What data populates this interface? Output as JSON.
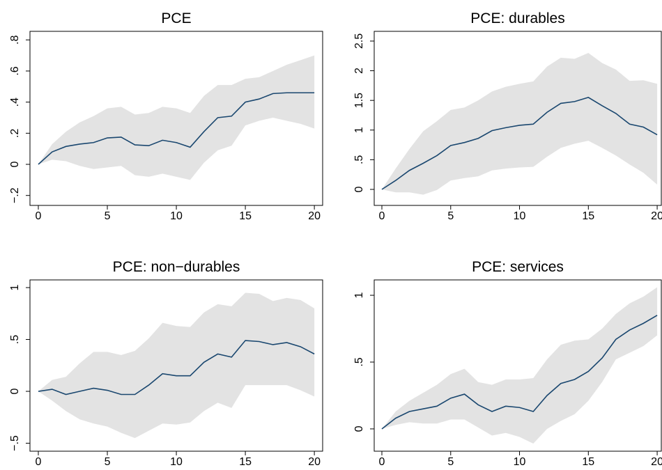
{
  "chart_data": [
    {
      "type": "line",
      "title": "PCE",
      "x": [
        0,
        1,
        2,
        3,
        4,
        5,
        6,
        7,
        8,
        9,
        10,
        11,
        12,
        13,
        14,
        15,
        16,
        17,
        18,
        19,
        20
      ],
      "values": [
        0,
        0.08,
        0.115,
        0.13,
        0.14,
        0.17,
        0.175,
        0.125,
        0.12,
        0.155,
        0.14,
        0.11,
        0.21,
        0.3,
        0.31,
        0.4,
        0.42,
        0.455,
        0.46,
        0.46,
        0.46
      ],
      "upper": [
        0,
        0.13,
        0.21,
        0.27,
        0.31,
        0.36,
        0.37,
        0.32,
        0.33,
        0.37,
        0.36,
        0.33,
        0.44,
        0.51,
        0.51,
        0.55,
        0.56,
        0.6,
        0.64,
        0.67,
        0.7
      ],
      "lower": [
        0,
        0.03,
        0.02,
        -0.01,
        -0.03,
        -0.02,
        -0.01,
        -0.07,
        -0.08,
        -0.06,
        -0.08,
        -0.1,
        0.01,
        0.09,
        0.12,
        0.25,
        0.28,
        0.3,
        0.28,
        0.26,
        0.23
      ],
      "color": "#1a476f",
      "band_color": "#e3e3e3",
      "xlim": [
        -0.606,
        20.6
      ],
      "xticks": [
        0,
        5,
        10,
        15,
        20
      ],
      "ylim": [
        -0.264,
        0.855
      ],
      "yticks": [
        {
          "value": -0.2,
          "label": "−.2"
        },
        0,
        {
          "value": 0.2,
          "label": ".2"
        },
        {
          "value": 0.4,
          "label": ".4"
        },
        {
          "value": 0.6,
          "label": ".6"
        },
        {
          "value": 0.8,
          "label": ".8"
        }
      ]
    },
    {
      "type": "line",
      "title": "PCE: durables",
      "x": [
        0,
        1,
        2,
        3,
        4,
        5,
        6,
        7,
        8,
        9,
        10,
        11,
        12,
        13,
        14,
        15,
        16,
        17,
        18,
        19,
        20
      ],
      "values": [
        0,
        0.15,
        0.32,
        0.44,
        0.57,
        0.74,
        0.79,
        0.86,
        0.99,
        1.04,
        1.08,
        1.1,
        1.3,
        1.45,
        1.48,
        1.55,
        1.41,
        1.28,
        1.1,
        1.05,
        0.92
      ],
      "upper": [
        0,
        0.35,
        0.68,
        0.98,
        1.15,
        1.34,
        1.38,
        1.5,
        1.65,
        1.73,
        1.78,
        1.82,
        2.07,
        2.22,
        2.2,
        2.3,
        2.13,
        2.02,
        1.83,
        1.84,
        1.78
      ],
      "lower": [
        0,
        -0.05,
        -0.05,
        -0.09,
        -0.01,
        0.15,
        0.19,
        0.22,
        0.32,
        0.35,
        0.37,
        0.38,
        0.55,
        0.7,
        0.77,
        0.82,
        0.7,
        0.57,
        0.42,
        0.28,
        0.08
      ],
      "color": "#1a476f",
      "band_color": "#e3e3e3",
      "xlim": [
        -0.557,
        20.3
      ],
      "xticks": [
        0,
        5,
        10,
        15,
        20
      ],
      "ylim": [
        -0.27,
        2.664
      ],
      "yticks": [
        0,
        {
          "value": 0.5,
          "label": ".5"
        },
        1,
        1.5,
        2,
        2.5
      ]
    },
    {
      "type": "line",
      "title": "PCE: non−durables",
      "x": [
        0,
        1,
        2,
        3,
        4,
        5,
        6,
        7,
        8,
        9,
        10,
        11,
        12,
        13,
        14,
        15,
        16,
        17,
        18,
        19,
        20
      ],
      "values": [
        0,
        0.02,
        -0.03,
        0,
        0.03,
        0.01,
        -0.03,
        -0.03,
        0.06,
        0.17,
        0.15,
        0.15,
        0.28,
        0.36,
        0.33,
        0.49,
        0.48,
        0.45,
        0.47,
        0.43,
        0.36
      ],
      "upper": [
        0,
        0.11,
        0.14,
        0.27,
        0.38,
        0.38,
        0.35,
        0.39,
        0.51,
        0.66,
        0.63,
        0.62,
        0.76,
        0.84,
        0.82,
        0.95,
        0.94,
        0.87,
        0.9,
        0.88,
        0.8
      ],
      "lower": [
        0,
        -0.09,
        -0.19,
        -0.27,
        -0.31,
        -0.34,
        -0.4,
        -0.45,
        -0.38,
        -0.31,
        -0.32,
        -0.3,
        -0.19,
        -0.11,
        -0.16,
        0.06,
        0.06,
        0.06,
        0.06,
        0.01,
        -0.05
      ],
      "color": "#1a476f",
      "band_color": "#e3e3e3",
      "xlim": [
        -0.606,
        20.6
      ],
      "xticks": [
        0,
        5,
        10,
        15,
        20
      ],
      "ylim": [
        -0.577,
        1.074
      ],
      "yticks": [
        {
          "value": -0.5,
          "label": "−.5"
        },
        0,
        {
          "value": 0.5,
          "label": ".5"
        },
        1
      ]
    },
    {
      "type": "line",
      "title": "PCE: services",
      "x": [
        0,
        1,
        2,
        3,
        4,
        5,
        6,
        7,
        8,
        9,
        10,
        11,
        12,
        13,
        14,
        15,
        16,
        17,
        18,
        19,
        20
      ],
      "values": [
        0,
        0.08,
        0.13,
        0.15,
        0.17,
        0.23,
        0.26,
        0.18,
        0.13,
        0.17,
        0.16,
        0.13,
        0.25,
        0.34,
        0.37,
        0.43,
        0.53,
        0.67,
        0.74,
        0.79,
        0.85
      ],
      "upper": [
        0,
        0.13,
        0.21,
        0.27,
        0.33,
        0.41,
        0.45,
        0.35,
        0.33,
        0.37,
        0.37,
        0.38,
        0.52,
        0.63,
        0.66,
        0.67,
        0.75,
        0.86,
        0.94,
        0.99,
        1.06
      ],
      "lower": [
        0,
        0.03,
        0.05,
        0.04,
        0.04,
        0.07,
        0.07,
        0.01,
        -0.05,
        -0.03,
        -0.06,
        -0.11,
        0,
        0.06,
        0.11,
        0.21,
        0.35,
        0.52,
        0.57,
        0.62,
        0.7
      ],
      "color": "#1a476f",
      "band_color": "#e3e3e3",
      "xlim": [
        -0.557,
        20.3
      ],
      "xticks": [
        0,
        5,
        10,
        15,
        20
      ],
      "ylim": [
        -0.167,
        1.115
      ],
      "yticks": [
        0,
        {
          "value": 0.5,
          "label": ".5"
        },
        1
      ]
    }
  ]
}
